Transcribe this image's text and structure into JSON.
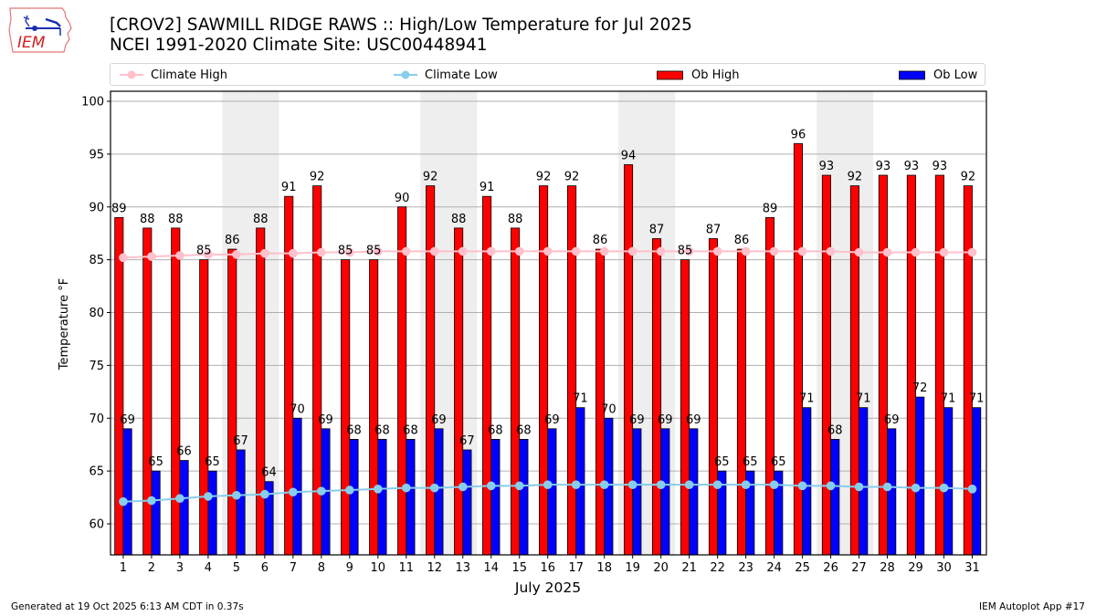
{
  "header": {
    "title_line1": "[CROV2] SAWMILL RIDGE RAWS :: High/Low Temperature for Jul 2025",
    "title_line2": "NCEI 1991-2020 Climate Site: USC00448941",
    "logo_text": "IEM"
  },
  "legend": {
    "climate_high": "Climate High",
    "climate_low": "Climate Low",
    "ob_high": "Ob High",
    "ob_low": "Ob Low"
  },
  "colors": {
    "ob_high": "#ff0000",
    "ob_low": "#0000ff",
    "climate_high": "#ffc0cb",
    "climate_low": "#87ceeb",
    "weekend_shade": "#eeeeee",
    "grid": "#b0b0b0"
  },
  "footer": {
    "generated": "Generated at 19 Oct 2025 6:13 AM CDT in 0.37s",
    "app": "IEM Autoplot App #17"
  },
  "chart_data": {
    "type": "bar",
    "title": "[CROV2] SAWMILL RIDGE RAWS :: High/Low Temperature for Jul 2025",
    "subtitle": "NCEI 1991-2020 Climate Site: USC00448941",
    "xlabel": "July 2025",
    "ylabel": "Temperature °F",
    "ylim": [
      57,
      101
    ],
    "yticks": [
      60,
      65,
      70,
      75,
      80,
      85,
      90,
      95,
      100
    ],
    "grid": "horizontal",
    "legend_position": "top",
    "categories": [
      "1",
      "2",
      "3",
      "4",
      "5",
      "6",
      "7",
      "8",
      "9",
      "10",
      "11",
      "12",
      "13",
      "14",
      "15",
      "16",
      "17",
      "18",
      "19",
      "20",
      "21",
      "22",
      "23",
      "24",
      "25",
      "26",
      "27",
      "28",
      "29",
      "30",
      "31"
    ],
    "shaded_days": [
      5,
      6,
      12,
      13,
      19,
      20,
      26,
      27
    ],
    "series": [
      {
        "name": "Ob High",
        "type": "bar",
        "values": [
          89,
          88,
          88,
          85,
          86,
          88,
          91,
          92,
          85,
          85,
          90,
          92,
          88,
          91,
          88,
          92,
          92,
          86,
          94,
          87,
          85,
          87,
          86,
          89,
          96,
          93,
          92,
          93,
          93,
          93,
          92
        ]
      },
      {
        "name": "Ob Low",
        "type": "bar",
        "values": [
          69,
          65,
          66,
          65,
          67,
          64,
          70,
          69,
          68,
          68,
          68,
          69,
          67,
          68,
          68,
          69,
          71,
          70,
          69,
          69,
          69,
          65,
          65,
          65,
          71,
          68,
          71,
          69,
          72,
          71,
          71
        ]
      },
      {
        "name": "Climate High",
        "type": "line",
        "values": [
          85.2,
          85.3,
          85.4,
          85.5,
          85.5,
          85.6,
          85.6,
          85.7,
          85.7,
          85.8,
          85.8,
          85.8,
          85.8,
          85.8,
          85.8,
          85.8,
          85.8,
          85.8,
          85.8,
          85.8,
          85.8,
          85.8,
          85.8,
          85.8,
          85.8,
          85.8,
          85.7,
          85.7,
          85.7,
          85.7,
          85.7
        ]
      },
      {
        "name": "Climate Low",
        "type": "line",
        "values": [
          62.1,
          62.2,
          62.4,
          62.6,
          62.7,
          62.8,
          63.0,
          63.1,
          63.2,
          63.3,
          63.4,
          63.4,
          63.5,
          63.6,
          63.6,
          63.7,
          63.7,
          63.7,
          63.7,
          63.7,
          63.7,
          63.7,
          63.7,
          63.7,
          63.6,
          63.6,
          63.5,
          63.5,
          63.4,
          63.4,
          63.3
        ]
      }
    ]
  }
}
